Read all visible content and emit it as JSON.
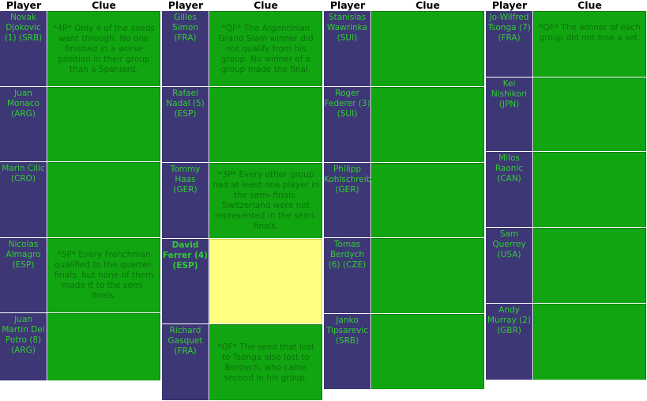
{
  "headers": {
    "player": "Player",
    "clue": "Clue"
  },
  "columns": [
    {
      "rows": [
        {
          "player": "Novak Djokovic (1) (SRB)",
          "clue": "*4P* Only 4 of the seeds went through. No one finished in a worse position in their group than a Spaniard."
        },
        {
          "player": "Juan Monaco (ARG)",
          "clue": ""
        },
        {
          "player": "Marin Cilic (CRO)",
          "clue": ""
        },
        {
          "player": "Nicolas Almagro (ESP)",
          "clue": "*5P* Every Frenchman qualified to the quarter-finals, but none of them made it to the semi-finals."
        },
        {
          "player": "Juan Martin Del Potro (8) (ARG)",
          "clue": ""
        }
      ]
    },
    {
      "rows": [
        {
          "player": "Gilles Simon (FRA)",
          "clue": "*QF* The Argentinian Grand Slam winner did not qualify from his group. No winner of a group made the final."
        },
        {
          "player": "Rafael Nadal (5) (ESP)",
          "clue": ""
        },
        {
          "player": "Tommy Haas (GER)",
          "clue": "*3P* Every other group had at least one player in the semi-finals. Switzerland were not represented in the semi-finals."
        },
        {
          "player": "David Ferrer (4) (ESP)",
          "clue": "",
          "highlight": true
        },
        {
          "player": "Richard Gasquet (FRA)",
          "clue": "*QF* The seed that lost to Tsonga also lost to Berdych, who came second in his group."
        }
      ]
    },
    {
      "rows": [
        {
          "player": "Stanislas Wawrinka (SUI)",
          "clue": ""
        },
        {
          "player": "Roger Federer (3) (SUI)",
          "clue": ""
        },
        {
          "player": "Philipp Kohlschreiber (GER)",
          "clue": ""
        },
        {
          "player": "Tomas Berdych (6) (CZE)",
          "clue": ""
        },
        {
          "player": "Janko Tipsarevic (SRB)",
          "clue": ""
        }
      ]
    },
    {
      "rows": [
        {
          "player": "Jo-Wilfred Tsonga (7) (FRA)",
          "clue": "*QF* The winner of each group did not lose a set."
        },
        {
          "player": "Kei Nishikori (JPN)",
          "clue": ""
        },
        {
          "player": "Milos Raonic (CAN)",
          "clue": ""
        },
        {
          "player": "Sam Querrey (USA)",
          "clue": ""
        },
        {
          "player": "Andy Murray (2) (GBR)",
          "clue": ""
        }
      ]
    }
  ]
}
